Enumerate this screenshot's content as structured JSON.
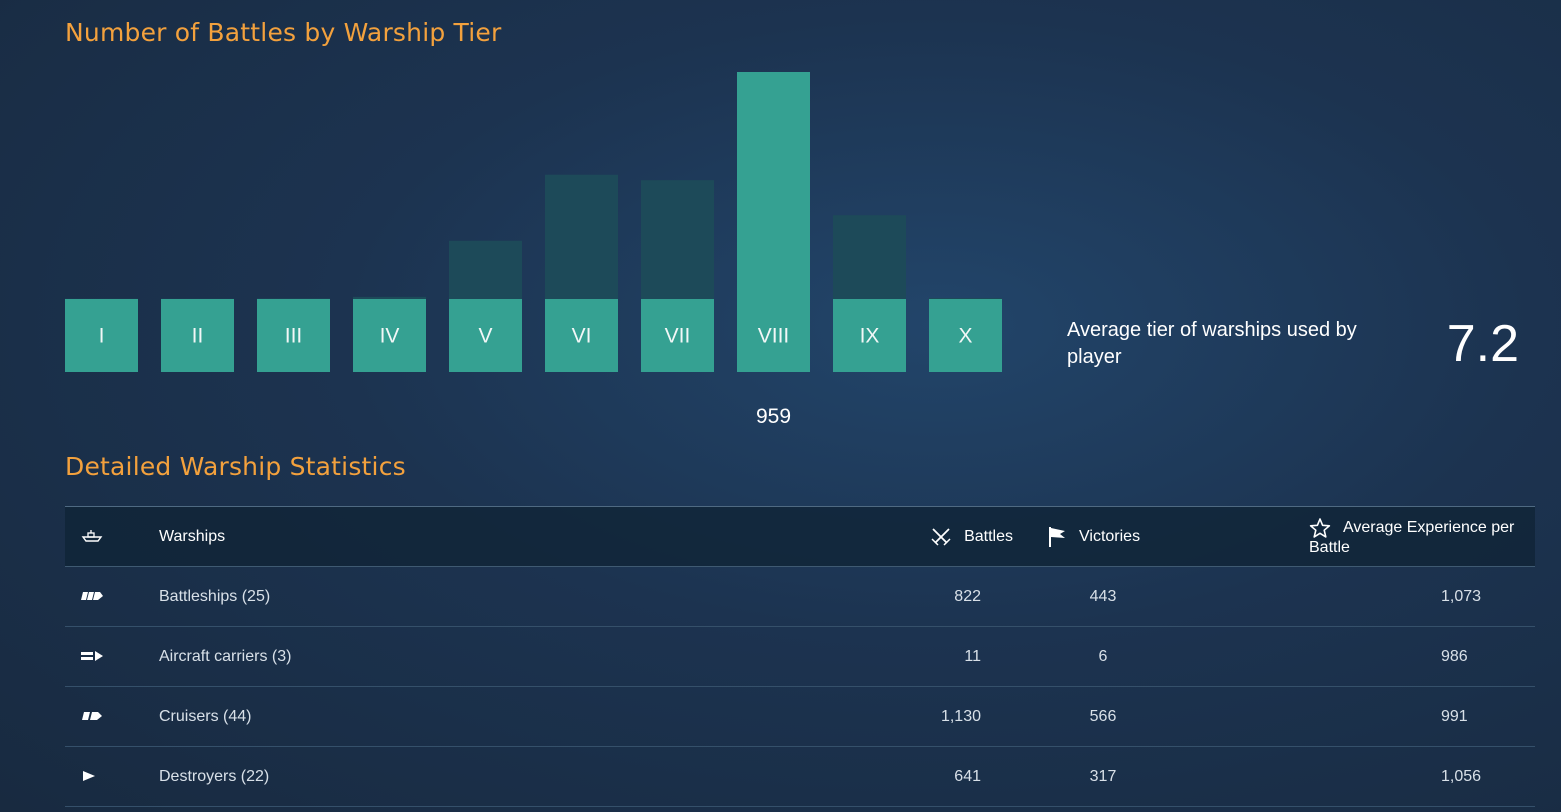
{
  "chart_title": "Number of Battles by Warship Tier",
  "table_title": "Detailed Warship Statistics",
  "average_tier": {
    "label": "Average tier of warships used by player",
    "value": "7.2"
  },
  "chart_data": {
    "type": "bar",
    "title": "Number of Battles by Warship Tier",
    "categories": [
      "I",
      "II",
      "III",
      "IV",
      "V",
      "VI",
      "VII",
      "VIII",
      "IX",
      "X"
    ],
    "values": [
      1,
      1,
      2,
      9,
      246,
      525,
      502,
      959,
      354,
      4
    ],
    "highlighted": {
      "category": "VIII",
      "value": 959
    },
    "ylim": [
      0,
      959
    ],
    "xlabel": "",
    "ylabel": ""
  },
  "colors": {
    "bar": "#35a192",
    "bar_dim": "#1d4a59",
    "title": "#f3a13d"
  },
  "table": {
    "headers": {
      "icon": "ship-icon",
      "warships": "Warships",
      "battles": "Battles",
      "victories": "Victories",
      "avg_exp": "Average Experience per Battle"
    },
    "rows": [
      {
        "icon": "battleship-icon",
        "name": "Battleships (25)",
        "battles": "822",
        "victories": "443",
        "avg_exp": "1,073"
      },
      {
        "icon": "aircraft-carrier-icon",
        "name": "Aircraft carriers (3)",
        "battles": "11",
        "victories": "6",
        "avg_exp": "986"
      },
      {
        "icon": "cruiser-icon",
        "name": "Cruisers (44)",
        "battles": "1,130",
        "victories": "566",
        "avg_exp": "991"
      },
      {
        "icon": "destroyer-icon",
        "name": "Destroyers (22)",
        "battles": "641",
        "victories": "317",
        "avg_exp": "1,056"
      }
    ]
  }
}
